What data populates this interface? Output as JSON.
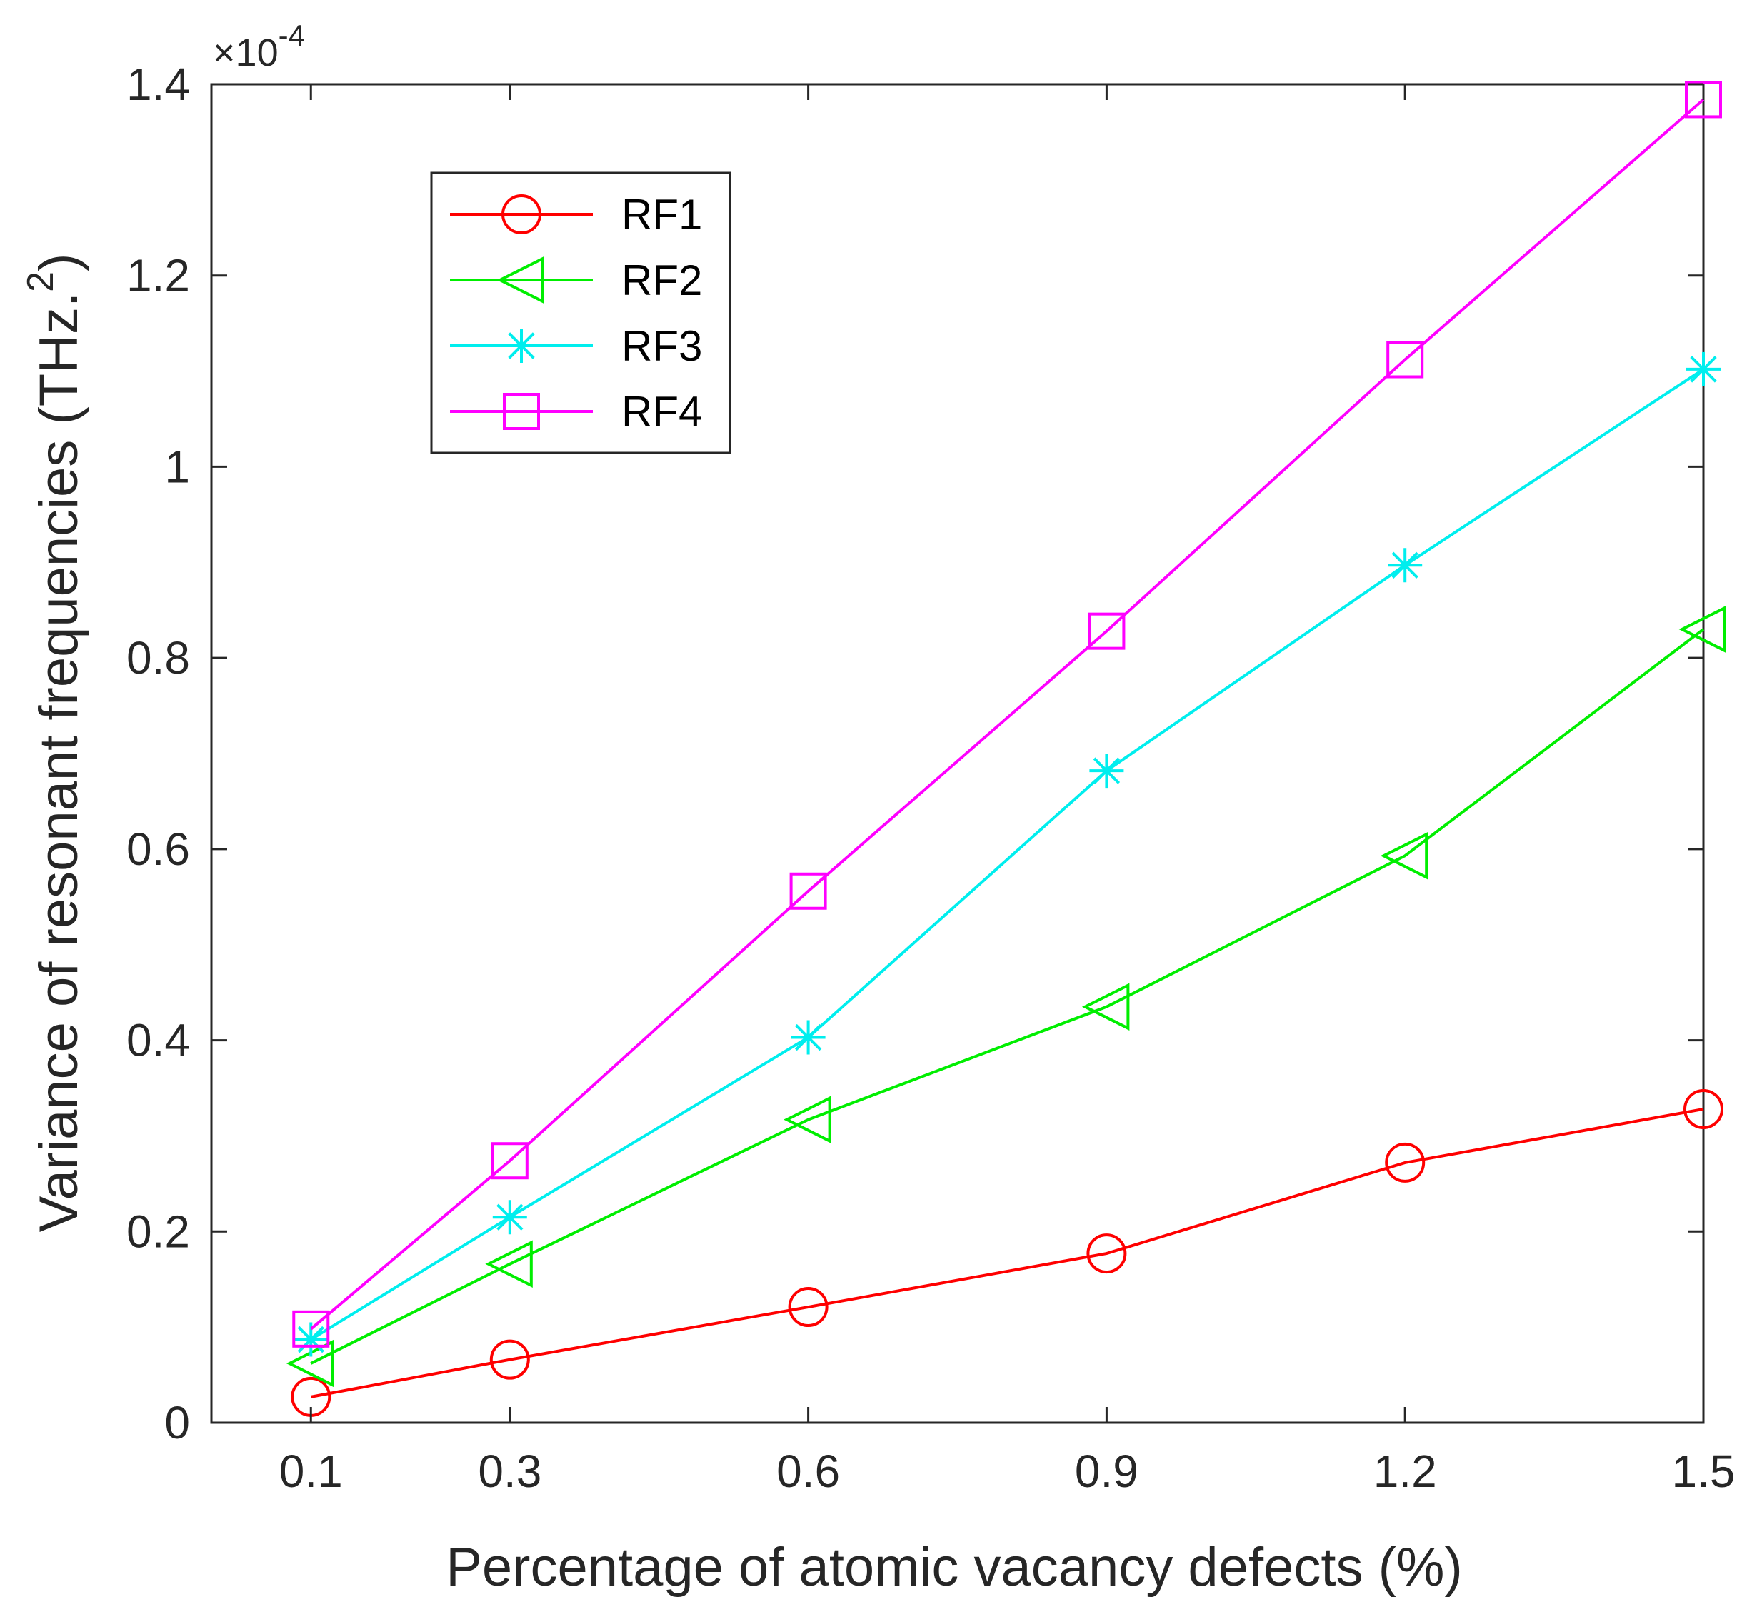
{
  "chart_data": {
    "type": "line",
    "title": "",
    "xlabel": "Percentage of atomic vacancy defects (%)",
    "ylabel": "Variance of resonant frequencies (THz.",
    "ylabel_superscript": "2",
    "ylabel_close": ")",
    "y_scale_prefix": "×10",
    "y_scale_exponent": "-4",
    "x": [
      0.1,
      0.3,
      0.6,
      0.9,
      1.2,
      1.5
    ],
    "x_tick_labels": [
      "0.1",
      "0.3",
      "0.6",
      "0.9",
      "1.2",
      "1.5"
    ],
    "xlim": [
      0.0,
      1.5
    ],
    "ylim": [
      0,
      1.4
    ],
    "y_ticks": [
      0,
      0.2,
      0.4,
      0.6,
      0.8,
      1.0,
      1.2,
      1.4
    ],
    "y_tick_labels": [
      "0",
      "0.2",
      "0.4",
      "0.6",
      "0.8",
      "1",
      "1.2",
      "1.4"
    ],
    "grid": false,
    "legend_position": "top-left",
    "series": [
      {
        "name": "RF1",
        "color": "#ff0000",
        "marker": "circle",
        "values": [
          0.027,
          0.066,
          0.121,
          0.177,
          0.272,
          0.328
        ]
      },
      {
        "name": "RF2",
        "color": "#00ee00",
        "marker": "triangle-left",
        "values": [
          0.062,
          0.166,
          0.317,
          0.435,
          0.593,
          0.83
        ]
      },
      {
        "name": "RF3",
        "color": "#00eeee",
        "marker": "asterisk",
        "values": [
          0.087,
          0.215,
          0.403,
          0.682,
          0.897,
          1.102
        ]
      },
      {
        "name": "RF4",
        "color": "#ff00ff",
        "marker": "square",
        "values": [
          0.098,
          0.274,
          0.556,
          0.828,
          1.112,
          1.384
        ]
      }
    ]
  }
}
